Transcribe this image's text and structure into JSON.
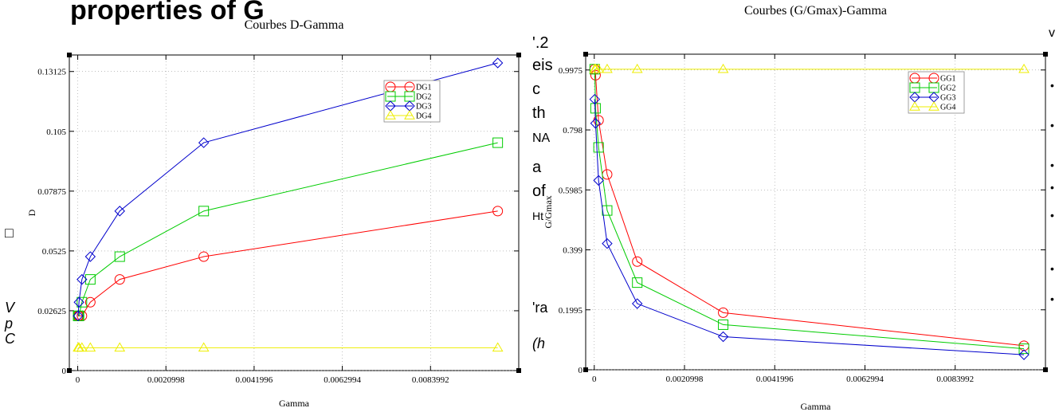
{
  "background_fragments": {
    "left_heading": "properties of G",
    "left_margin": [
      "□",
      "V",
      "p",
      "C"
    ],
    "right_top": [
      "'.2",
      "eis",
      "c",
      "th",
      "ΝA",
      "a",
      "of",
      "Ht",
      "'ra",
      "(h"
    ],
    "far_right": [
      "v",
      "•",
      "•",
      "•",
      "•",
      "•",
      "•",
      "•"
    ]
  },
  "chart_data": [
    {
      "type": "line",
      "title": "Courbes D-Gamma",
      "xlabel": "Gamma",
      "ylabel": "D",
      "xlim": [
        -0.0002,
        0.0105
      ],
      "ylim": [
        0,
        0.1385
      ],
      "xticks": [
        0,
        0.0020998,
        0.0041996,
        0.0062994,
        0.0083992
      ],
      "xtick_labels": [
        "0",
        "0.0020998",
        "0.0041996",
        "0.0062994",
        "0.0083992"
      ],
      "yticks": [
        0,
        0.02625,
        0.0525,
        0.07875,
        0.105,
        0.13125
      ],
      "ytick_labels": [
        "0",
        "0.02625",
        "0.0525",
        "0.07875",
        "0.105",
        "0.13125"
      ],
      "grid": true,
      "legend_position": "top-right",
      "series": [
        {
          "name": "DG1",
          "color": "#ff0000",
          "marker": "circle",
          "x": [
            1e-05,
            3e-05,
            0.0001,
            0.0003,
            0.001,
            0.003,
            0.01
          ],
          "y": [
            0.024,
            0.024,
            0.024,
            0.03,
            0.04,
            0.05,
            0.07
          ]
        },
        {
          "name": "DG2",
          "color": "#00cc00",
          "marker": "square",
          "x": [
            1e-05,
            3e-05,
            0.0001,
            0.0003,
            0.001,
            0.003,
            0.01
          ],
          "y": [
            0.024,
            0.024,
            0.03,
            0.04,
            0.05,
            0.07,
            0.1
          ]
        },
        {
          "name": "DG3",
          "color": "#0000cc",
          "marker": "diamond",
          "x": [
            1e-05,
            3e-05,
            0.0001,
            0.0003,
            0.001,
            0.003,
            0.01
          ],
          "y": [
            0.024,
            0.03,
            0.04,
            0.05,
            0.07,
            0.1,
            0.135
          ]
        },
        {
          "name": "DG4",
          "color": "#eeee00",
          "marker": "triangle",
          "x": [
            1e-05,
            3e-05,
            0.0001,
            0.0003,
            0.001,
            0.003,
            0.01
          ],
          "y": [
            0.01,
            0.01,
            0.01,
            0.01,
            0.01,
            0.01,
            0.01
          ]
        }
      ]
    },
    {
      "type": "line",
      "title": "Courbes (G/Gmax)-Gamma",
      "xlabel": "Gamma",
      "ylabel": "G/Gmax",
      "xlim": [
        -0.0002,
        0.0105
      ],
      "ylim": [
        0,
        1.05
      ],
      "xticks": [
        0,
        0.0020998,
        0.0041996,
        0.0062994,
        0.0083992
      ],
      "xtick_labels": [
        "0",
        "0.0020998",
        "0.0041996",
        "0.0062994",
        "0.0083992"
      ],
      "yticks": [
        0,
        0.1995,
        0.399,
        0.5985,
        0.798,
        0.9975
      ],
      "ytick_labels": [
        "0",
        "0.1995",
        "0.399",
        "0.5985",
        "0.798",
        "0.9975"
      ],
      "grid": true,
      "legend_position": "top-right",
      "series": [
        {
          "name": "GG1",
          "color": "#ff0000",
          "marker": "circle",
          "x": [
            1e-05,
            3e-05,
            0.0001,
            0.0003,
            0.001,
            0.003,
            0.01
          ],
          "y": [
            1.0,
            0.98,
            0.83,
            0.65,
            0.36,
            0.19,
            0.08
          ]
        },
        {
          "name": "GG2",
          "color": "#00cc00",
          "marker": "square",
          "x": [
            1e-05,
            3e-05,
            0.0001,
            0.0003,
            0.001,
            0.003,
            0.01
          ],
          "y": [
            1.0,
            0.87,
            0.74,
            0.53,
            0.29,
            0.15,
            0.07
          ]
        },
        {
          "name": "GG3",
          "color": "#0000cc",
          "marker": "diamond",
          "x": [
            1e-05,
            3e-05,
            0.0001,
            0.0003,
            0.001,
            0.003,
            0.01
          ],
          "y": [
            0.9,
            0.82,
            0.63,
            0.42,
            0.22,
            0.11,
            0.05
          ]
        },
        {
          "name": "GG4",
          "color": "#eeee00",
          "marker": "triangle",
          "x": [
            1e-05,
            3e-05,
            0.0001,
            0.0003,
            0.001,
            0.003,
            0.01
          ],
          "y": [
            1.0,
            1.0,
            1.0,
            1.0,
            1.0,
            1.0,
            1.0
          ]
        }
      ]
    }
  ]
}
